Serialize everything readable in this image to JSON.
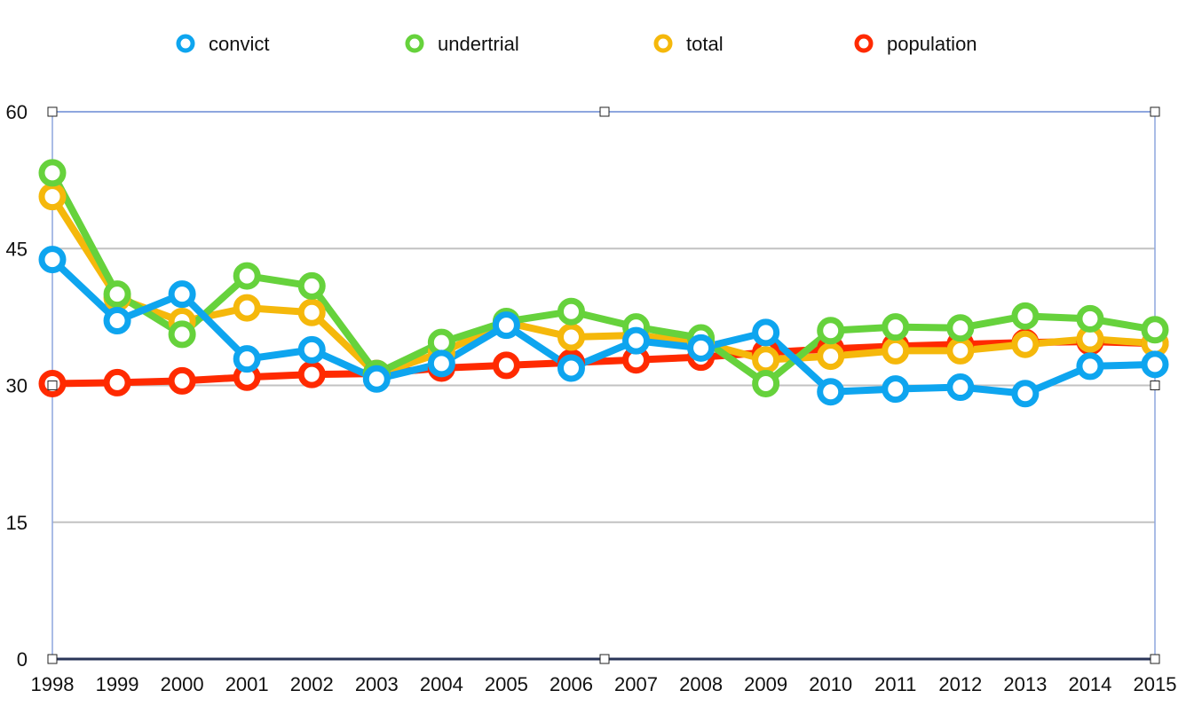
{
  "chart_data": {
    "type": "line",
    "title": "",
    "xlabel": "",
    "ylabel": "",
    "x": [
      1998,
      1999,
      2000,
      2001,
      2002,
      2003,
      2004,
      2005,
      2006,
      2007,
      2008,
      2009,
      2010,
      2011,
      2012,
      2013,
      2014,
      2015
    ],
    "x_tick_labels": [
      "1998",
      "1999",
      "2000",
      "2001",
      "2002",
      "2003",
      "2004",
      "2005",
      "2006",
      "2007",
      "2008",
      "2009",
      "2010",
      "2011",
      "2012",
      "2013",
      "2014",
      "2015"
    ],
    "ylim": [
      0,
      60
    ],
    "y_ticks": [
      0,
      15,
      30,
      45,
      60
    ],
    "y_tick_labels": [
      "0",
      "15",
      "30",
      "45",
      "60"
    ],
    "grid": true,
    "legend_position": "top",
    "series": [
      {
        "name": "convict",
        "color": "#0ea5ef",
        "values": [
          43.8,
          37.1,
          40.0,
          32.9,
          33.9,
          30.7,
          32.4,
          36.6,
          31.9,
          34.9,
          34.1,
          35.8,
          29.3,
          29.6,
          29.8,
          29.1,
          32.1,
          32.3
        ]
      },
      {
        "name": "undertrial",
        "color": "#66d23c",
        "values": [
          53.3,
          40.0,
          35.6,
          42.0,
          40.9,
          31.3,
          34.7,
          37.0,
          38.1,
          36.4,
          35.2,
          30.2,
          36.0,
          36.4,
          36.3,
          37.6,
          37.3,
          36.1
        ]
      },
      {
        "name": "total",
        "color": "#f5b80b",
        "values": [
          50.7,
          39.6,
          37.0,
          38.5,
          38.0,
          31.2,
          33.6,
          36.9,
          35.3,
          35.5,
          34.7,
          32.8,
          33.2,
          33.8,
          33.8,
          34.5,
          35.1,
          34.6
        ]
      },
      {
        "name": "population",
        "color": "#ff2a00",
        "values": [
          30.2,
          30.3,
          30.5,
          30.9,
          31.2,
          31.3,
          31.9,
          32.2,
          32.5,
          32.8,
          33.1,
          33.6,
          34.0,
          34.3,
          34.5,
          34.7,
          34.8,
          34.6
        ]
      }
    ]
  }
}
